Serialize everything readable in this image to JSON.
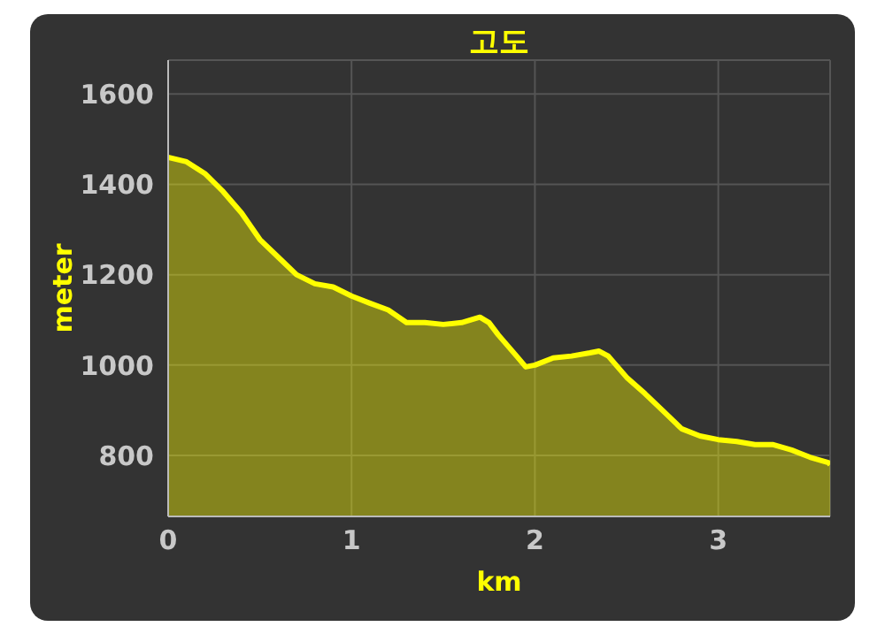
{
  "chart_data": {
    "type": "area",
    "title": "고도",
    "xlabel": "km",
    "ylabel": "meter",
    "x": [
      0,
      0.1,
      0.2,
      0.3,
      0.4,
      0.5,
      0.6,
      0.7,
      0.8,
      0.9,
      1.0,
      1.1,
      1.2,
      1.3,
      1.4,
      1.5,
      1.6,
      1.7,
      1.75,
      1.8,
      1.9,
      1.95,
      2.0,
      2.1,
      2.2,
      2.3,
      2.35,
      2.4,
      2.5,
      2.6,
      2.7,
      2.8,
      2.9,
      3.0,
      3.1,
      3.2,
      3.3,
      3.4,
      3.5,
      3.6,
      3.61
    ],
    "series": [
      {
        "color": "#ffff00",
        "values": [
          1460,
          1450,
          1424,
          1384,
          1337,
          1278,
          1239,
          1200,
          1180,
          1173,
          1153,
          1137,
          1122,
          1094,
          1094,
          1090,
          1094,
          1106,
          1094,
          1067,
          1020,
          996,
          1000,
          1016,
          1020,
          1027,
          1031,
          1020,
          973,
          937,
          898,
          859,
          843,
          835,
          831,
          824,
          824,
          812,
          796,
          784,
          780
        ]
      }
    ],
    "xlim": [
      0,
      3.61
    ],
    "xticks": [
      0,
      1,
      2,
      3
    ],
    "ylim": [
      665,
      1675
    ],
    "yticks": [
      800,
      1000,
      1200,
      1400,
      1600
    ],
    "grid": true,
    "legend": false
  }
}
